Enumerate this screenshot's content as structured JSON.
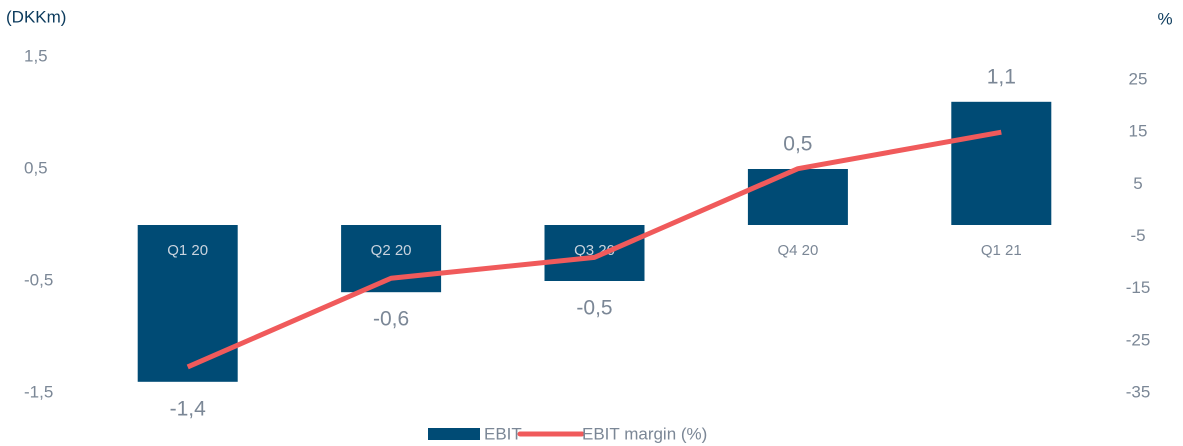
{
  "chart_data": {
    "type": "bar",
    "y_axis_label": "(DKKm)",
    "y2_axis_label": "%",
    "categories": [
      "Q1 20",
      "Q2 20",
      "Q3 20",
      "Q4 20",
      "Q1 21"
    ],
    "series": [
      {
        "name": "EBIT",
        "color": "#004b75",
        "type": "bar",
        "values": [
          -1.4,
          -0.6,
          -0.5,
          0.5,
          1.1
        ],
        "value_labels": [
          "-1,4",
          "-0,6",
          "-0,5",
          "0,5",
          "1,1"
        ]
      },
      {
        "name": "EBIT margin (%)",
        "color": "#f05a5b",
        "type": "line",
        "axis": "y2",
        "values": [
          -30,
          -13,
          -9,
          8,
          15
        ]
      }
    ],
    "ylim": [
      -1.5,
      1.5
    ],
    "yticks": [
      {
        "value": -1.5,
        "label": "-1,5"
      },
      {
        "value": -0.5,
        "label": "-0,5"
      },
      {
        "value": 0.5,
        "label": "0,5"
      },
      {
        "value": 1.5,
        "label": "1,5"
      }
    ],
    "y2lim": [
      -35,
      25
    ],
    "y2ticks": [
      -35,
      -25,
      -15,
      -5,
      5,
      15,
      25
    ],
    "legend": "bottom"
  }
}
